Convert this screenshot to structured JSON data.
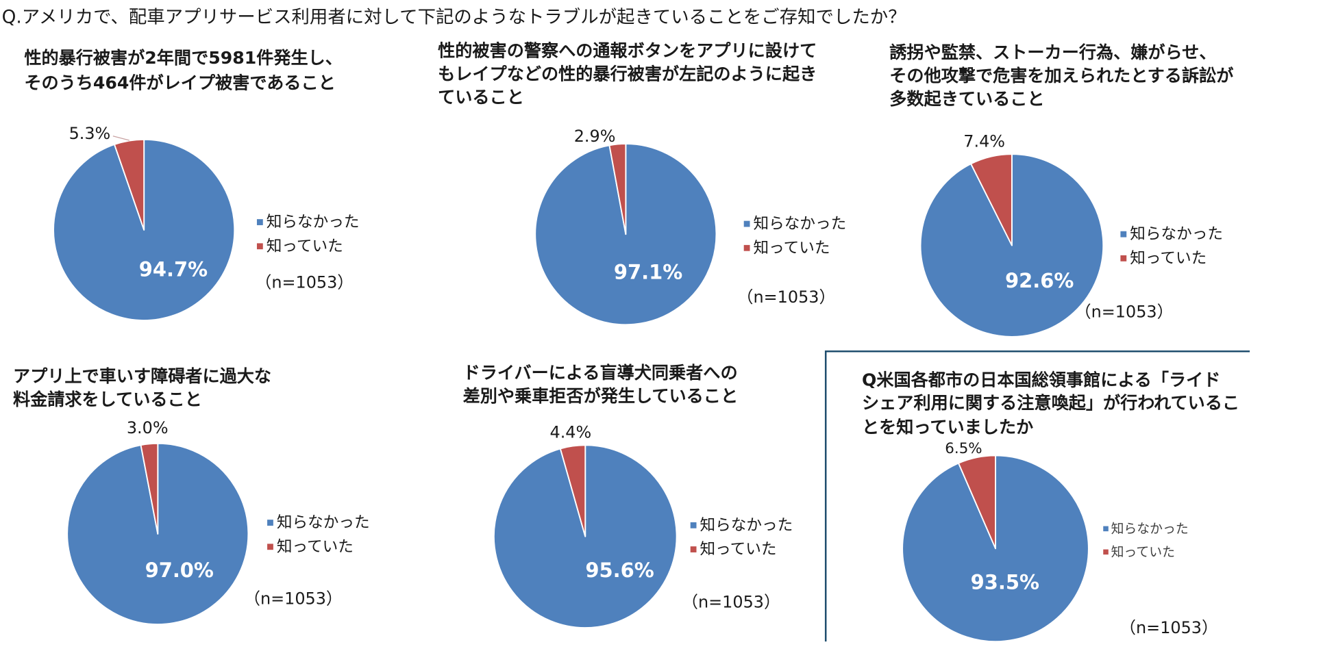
{
  "question": "Q.アメリカで、配車アプリサービス利用者に対して下記のようなトラブルが起きていることをご存知でしたか？",
  "colors": {
    "not_known": "#4F81BD",
    "known": "#C0504D",
    "highlight_box": "#1F4E6E"
  },
  "chart_data": [
    {
      "type": "pie",
      "title": [
        "性的暴行被害が2年間で5981件発生し、",
        "そのうち464件がレイプ被害であること"
      ],
      "categories": [
        "知らなかった",
        "知っていた"
      ],
      "values": [
        94.7,
        5.3
      ],
      "data_labels": [
        "94.7%",
        "5.3%"
      ],
      "n_label": "（n=1053）"
    },
    {
      "type": "pie",
      "title": [
        "性的被害の警察への通報ボタンをアプリに設けて",
        "もレイプなどの性的暴行被害が左記のように起き",
        "ていること"
      ],
      "categories": [
        "知らなかった",
        "知っていた"
      ],
      "values": [
        97.1,
        2.9
      ],
      "data_labels": [
        "97.1%",
        "2.9%"
      ],
      "n_label": "（n=1053）"
    },
    {
      "type": "pie",
      "title": [
        "誘拐や監禁、ストーカー行為、嫌がらせ、",
        "その他攻撃で危害を加えられたとする訴訟が",
        "多数起きていること"
      ],
      "categories": [
        "知らなかった",
        "知っていた"
      ],
      "values": [
        92.6,
        7.4
      ],
      "data_labels": [
        "92.6%",
        "7.4%"
      ],
      "n_label": "（n=1053）"
    },
    {
      "type": "pie",
      "title": [
        "アプリ上で車いす障碍者に過大な",
        "料金請求をしていること"
      ],
      "categories": [
        "知らなかった",
        "知っていた"
      ],
      "values": [
        97.0,
        3.0
      ],
      "data_labels": [
        "97.0%",
        "3.0%"
      ],
      "n_label": "（n=1053）"
    },
    {
      "type": "pie",
      "title": [
        "ドライバーによる盲導犬同乗者への",
        "差別や乗車拒否が発生していること"
      ],
      "categories": [
        "知らなかった",
        "知っていた"
      ],
      "values": [
        95.6,
        4.4
      ],
      "data_labels": [
        "95.6%",
        "4.4%"
      ],
      "n_label": "（n=1053）"
    },
    {
      "type": "pie",
      "title": [
        "Q米国各都市の日本国総領事館による「ライド",
        "シェア利用に関する注意喚起」が行われているこ",
        "とを知っていましたか"
      ],
      "categories": [
        "知らなかった",
        "知っていた"
      ],
      "values": [
        93.5,
        6.5
      ],
      "data_labels": [
        "93.5%",
        "6.5%"
      ],
      "n_label": "（n=1053）"
    }
  ]
}
